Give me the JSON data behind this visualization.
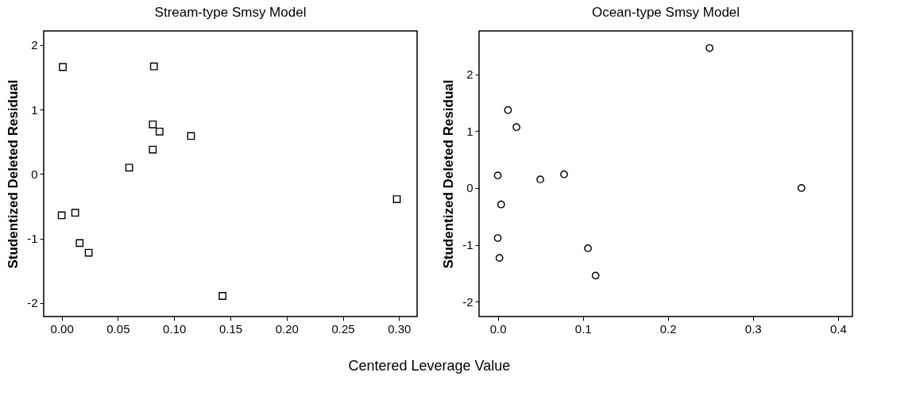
{
  "chart_data": [
    {
      "type": "scatter",
      "title": "Stream-type Smsy Model",
      "xlabel": "Centered Leverage Value",
      "ylabel": "Studentized Deleted Residual",
      "marker": "square",
      "grid": false,
      "legend": false,
      "xlim": [
        -0.016,
        0.316
      ],
      "xticks": [
        {
          "value": 0,
          "label": "0.00"
        },
        {
          "value": 0.05,
          "label": "0.05"
        },
        {
          "value": 0.1,
          "label": "0.10"
        },
        {
          "value": 0.15,
          "label": "0.15"
        },
        {
          "value": 0.2,
          "label": "0.20"
        },
        {
          "value": 0.25,
          "label": "0.25"
        },
        {
          "value": 0.3,
          "label": "0.30"
        }
      ],
      "ylim": [
        -2.21,
        2.22
      ],
      "yticks": [
        -2,
        -1,
        0,
        1,
        2
      ],
      "series": [
        {
          "color": "#000000",
          "x": [
            0.001,
            0.082,
            0.081,
            0.087,
            0.115,
            0.081,
            0.06,
            0.298,
            0.0,
            0.012,
            0.016,
            0.024,
            0.143
          ],
          "values": [
            1.66,
            1.67,
            0.77,
            0.66,
            0.59,
            0.38,
            0.1,
            -0.39,
            -0.64,
            -0.6,
            -1.07,
            -1.22,
            -1.89
          ]
        }
      ]
    },
    {
      "type": "scatter",
      "title": "Ocean-type Smsy Model",
      "ylabel": "Studentized Deleted Residual",
      "marker": "circle",
      "grid": false,
      "legend": false,
      "xlim": [
        -0.022,
        0.417
      ],
      "xticks": [
        {
          "value": 0,
          "label": "0.0"
        },
        0.1,
        0.2,
        0.3,
        0.4
      ],
      "ylim": [
        -2.26,
        2.76
      ],
      "yticks": [
        -2,
        -1,
        0,
        1,
        2
      ],
      "series": [
        {
          "color": "#000000",
          "x": [
            0.249,
            0.012,
            0.022,
            0.0,
            0.05,
            0.078,
            0.357,
            0.004,
            0.0,
            0.002,
            0.106,
            0.115
          ],
          "values": [
            2.46,
            1.37,
            1.07,
            0.22,
            0.15,
            0.24,
            0.0,
            -0.29,
            -0.88,
            -1.23,
            -1.06,
            -1.54
          ]
        }
      ]
    }
  ]
}
